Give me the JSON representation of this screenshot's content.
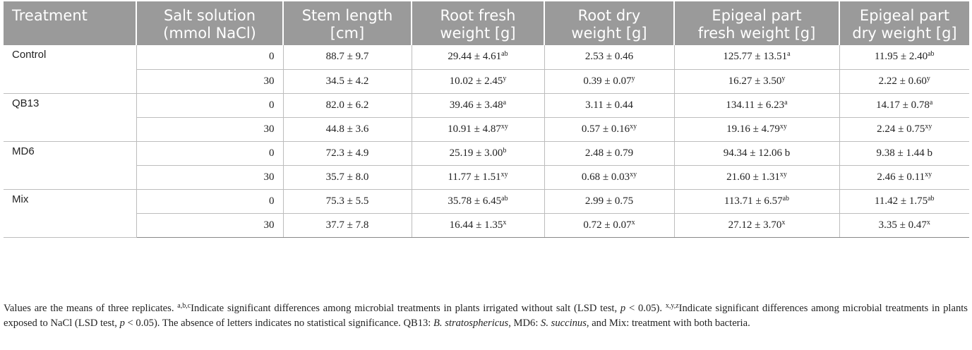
{
  "table": {
    "headers": [
      [
        "Treatment",
        ""
      ],
      [
        "Salt solution",
        "(mmol NaCl)"
      ],
      [
        "Stem length",
        "[cm]"
      ],
      [
        "Root fresh",
        "weight [g]"
      ],
      [
        "Root dry",
        "weight [g]"
      ],
      [
        "Epigeal part",
        "fresh weight [g]"
      ],
      [
        "Epigeal part",
        "dry weight [g]"
      ]
    ],
    "groups": [
      {
        "treatment": "Control",
        "rows": [
          {
            "salt": "0",
            "cells": [
              [
                "88.7 ± 9.7",
                ""
              ],
              [
                "29.44 ± 4.61",
                "ab"
              ],
              [
                "2.53 ± 0.46",
                ""
              ],
              [
                "125.77 ± 13.51",
                "a"
              ],
              [
                "11.95 ± 2.40",
                "ab"
              ]
            ]
          },
          {
            "salt": "30",
            "cells": [
              [
                "34.5 ± 4.2",
                ""
              ],
              [
                "10.02 ± 2.45",
                "y"
              ],
              [
                "0.39 ± 0.07",
                "y"
              ],
              [
                "16.27 ± 3.50",
                "y"
              ],
              [
                "2.22 ± 0.60",
                "y"
              ]
            ]
          }
        ]
      },
      {
        "treatment": "QB13",
        "rows": [
          {
            "salt": "0",
            "cells": [
              [
                "82.0 ± 6.2",
                ""
              ],
              [
                "39.46 ± 3.48",
                "a"
              ],
              [
                "3.11 ± 0.44",
                ""
              ],
              [
                "134.11 ± 6.23",
                "a"
              ],
              [
                "14.17 ± 0.78",
                "a"
              ]
            ]
          },
          {
            "salt": "30",
            "cells": [
              [
                "44.8 ± 3.6",
                ""
              ],
              [
                "10.91 ± 4.87",
                "xy"
              ],
              [
                "0.57 ± 0.16",
                "xy"
              ],
              [
                "19.16 ± 4.79",
                "xy"
              ],
              [
                "2.24 ± 0.75",
                "xy"
              ]
            ]
          }
        ]
      },
      {
        "treatment": "MD6",
        "rows": [
          {
            "salt": "0",
            "cells": [
              [
                "72.3 ± 4.9",
                ""
              ],
              [
                "25.19 ± 3.00",
                "b"
              ],
              [
                "2.48 ± 0.79",
                ""
              ],
              [
                "94.34 ± 12.06 b",
                ""
              ],
              [
                "9.38 ± 1.44 b",
                ""
              ]
            ]
          },
          {
            "salt": "30",
            "cells": [
              [
                "35.7 ± 8.0",
                ""
              ],
              [
                "11.77 ± 1.51",
                "xy"
              ],
              [
                "0.68 ± 0.03",
                "xy"
              ],
              [
                "21.60 ± 1.31",
                "xy"
              ],
              [
                "2.46 ± 0.11",
                "xy"
              ]
            ]
          }
        ]
      },
      {
        "treatment": "Mix",
        "rows": [
          {
            "salt": "0",
            "cells": [
              [
                "75.3 ± 5.5",
                ""
              ],
              [
                "35.78 ± 6.45",
                "ab"
              ],
              [
                "2.99 ± 0.75",
                ""
              ],
              [
                "113.71 ± 6.57",
                "ab"
              ],
              [
                "11.42 ± 1.75",
                "ab"
              ]
            ]
          },
          {
            "salt": "30",
            "cells": [
              [
                "37.7 ± 7.8",
                ""
              ],
              [
                "16.44 ± 1.35",
                "x"
              ],
              [
                "0.72 ± 0.07",
                "x"
              ],
              [
                "27.12 ± 3.70",
                "x"
              ],
              [
                "3.35 ± 0.47",
                "x"
              ]
            ]
          }
        ]
      }
    ]
  },
  "footnote": {
    "p1": "Values are the means of three replicates. ",
    "sup1": "a,b,c",
    "p2": "Indicate significant differences among microbial treatments in plants irrigated without salt (LSD test, ",
    "pvar1": "p",
    "p3": " < 0.05). ",
    "sup2": "x,y,z",
    "p4": "Indicate significant differences among microbial treatments in plants exposed to NaCl (LSD test, ",
    "pvar2": "p",
    "p5": " < 0.05). The absence of letters indicates no statistical significance. QB13: ",
    "sp1": "B. stratosphericus",
    "p6": ", MD6: ",
    "sp2": "S. succinus",
    "p7": ", and Mix: treatment with both bacteria."
  }
}
